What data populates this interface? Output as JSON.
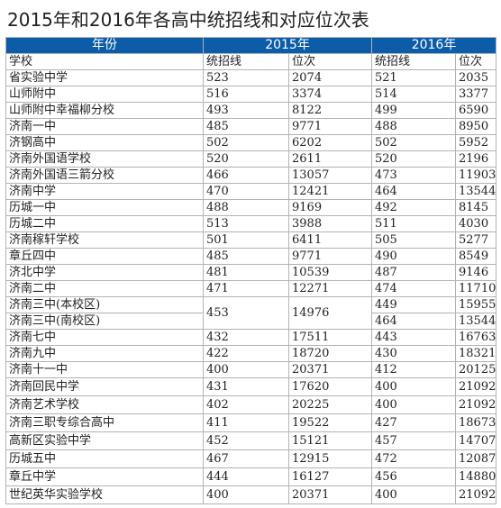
{
  "title": "2015年和2016年各高中统招线和对应位次表",
  "header": {
    "year_label": "年份",
    "year_2015": "2015年",
    "year_2016": "2016年",
    "school": "学校",
    "line": "统招线",
    "rank": "位次"
  },
  "rows": [
    {
      "school": "省实验中学",
      "l15": "523",
      "r15": "2074",
      "l16": "521",
      "r16": "2035"
    },
    {
      "school": "山师附中",
      "l15": "516",
      "r15": "3374",
      "l16": "514",
      "r16": "3377"
    },
    {
      "school": "山师附中幸福柳分校",
      "l15": "493",
      "r15": "8122",
      "l16": "499",
      "r16": "6590"
    },
    {
      "school": "济南一中",
      "l15": "485",
      "r15": "9771",
      "l16": "488",
      "r16": "8950"
    },
    {
      "school": "济钢高中",
      "l15": "502",
      "r15": "6202",
      "l16": "502",
      "r16": "5952"
    },
    {
      "school": "济南外国语学校",
      "l15": "520",
      "r15": "2611",
      "l16": "520",
      "r16": "2196"
    },
    {
      "school": "济南外国语三箭分校",
      "l15": "466",
      "r15": "13057",
      "l16": "473",
      "r16": "11903"
    },
    {
      "school": "济南中学",
      "l15": "470",
      "r15": "12421",
      "l16": "464",
      "r16": "13544"
    },
    {
      "school": "历城一中",
      "l15": "488",
      "r15": "9169",
      "l16": "492",
      "r16": "8145"
    },
    {
      "school": "历城二中",
      "l15": "513",
      "r15": "3988",
      "l16": "511",
      "r16": "4030"
    },
    {
      "school": "济南稼轩学校",
      "l15": "501",
      "r15": "6411",
      "l16": "505",
      "r16": "5277"
    },
    {
      "school": "章丘四中",
      "l15": "485",
      "r15": "9771",
      "l16": "490",
      "r16": "8549"
    },
    {
      "school": "济北中学",
      "l15": "481",
      "r15": "10539",
      "l16": "487",
      "r16": "9146"
    },
    {
      "school": "济南二中",
      "l15": "471",
      "r15": "12271",
      "l16": "474",
      "r16": "11710"
    }
  ],
  "merged": {
    "school_a": "济南三中(本校区)",
    "school_b": "济南三中(南校区)",
    "l15": "453",
    "r15": "14976",
    "l16_a": "449",
    "r16_a": "15955",
    "l16_b": "464",
    "r16_b": "13544"
  },
  "rows2": [
    {
      "school": "济南七中",
      "l15": "432",
      "r15": "17511",
      "l16": "443",
      "r16": "16763"
    },
    {
      "school": "济南九中",
      "l15": "422",
      "r15": "18720",
      "l16": "430",
      "r16": "18321"
    },
    {
      "school": "济南十一中",
      "l15": "400",
      "r15": "20371",
      "l16": "412",
      "r16": "20125"
    }
  ],
  "rows3": [
    {
      "school": "济南回民中学",
      "l15": "431",
      "r15": "17620",
      "l16": "400",
      "r16": "21092"
    },
    {
      "school": "济南艺术学校",
      "l15": "402",
      "r15": "20225",
      "l16": "400",
      "r16": "21092"
    },
    {
      "school": "济南三职专综合高中",
      "l15": "411",
      "r15": "19522",
      "l16": "427",
      "r16": "18673"
    },
    {
      "school": "高新区实验中学",
      "l15": "452",
      "r15": "15121",
      "l16": "457",
      "r16": "14707"
    },
    {
      "school": "历城五中",
      "l15": "467",
      "r15": "12915",
      "l16": "472",
      "r16": "12087"
    },
    {
      "school": "章丘中学",
      "l15": "444",
      "r15": "16127",
      "l16": "456",
      "r16": "14880"
    },
    {
      "school": "世纪英华实验学校",
      "l15": "400",
      "r15": "20371",
      "l16": "400",
      "r16": "21092"
    }
  ]
}
